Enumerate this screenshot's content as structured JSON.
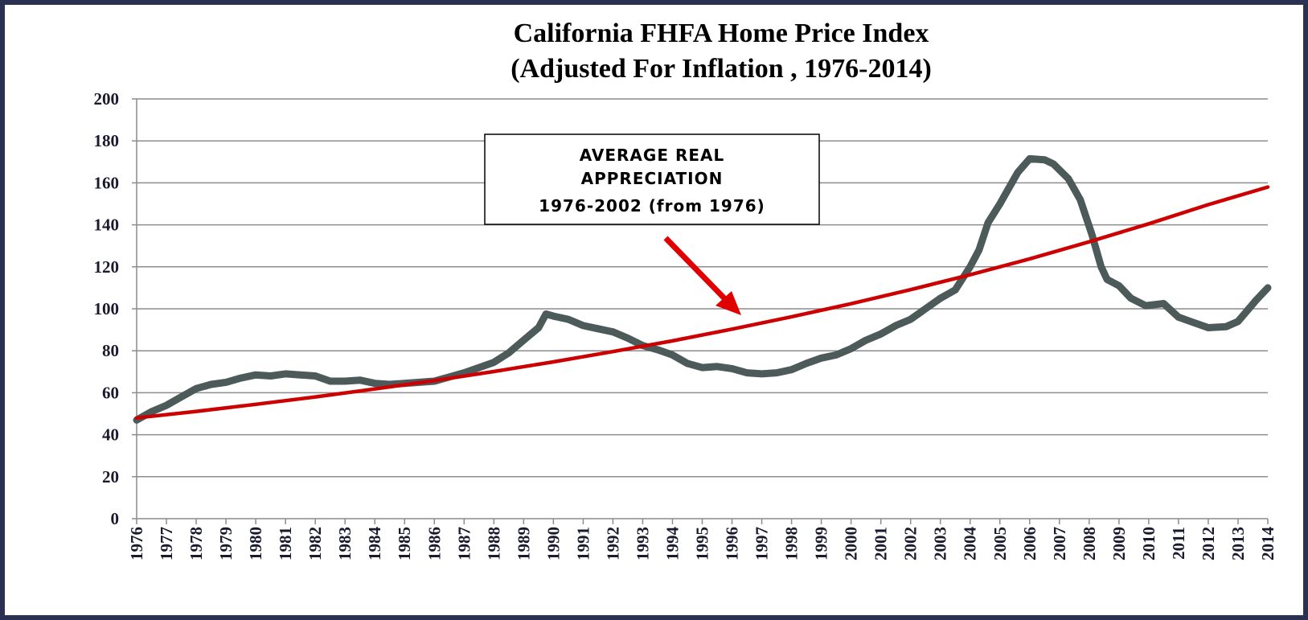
{
  "chart_data": {
    "type": "line",
    "title": [
      "California FHFA Home Price Index",
      "(Adjusted For Inflation , 1976-2014)"
    ],
    "annotation": [
      "AVERAGE REAL",
      "APPRECIATION",
      "1976-2002 (from 1976)"
    ],
    "xlim": [
      1976,
      2014
    ],
    "xticks": [
      1976,
      1977,
      1978,
      1979,
      1980,
      1981,
      1982,
      1983,
      1984,
      1985,
      1986,
      1987,
      1988,
      1989,
      1990,
      1991,
      1992,
      1993,
      1994,
      1995,
      1996,
      1997,
      1998,
      1999,
      2000,
      2001,
      2002,
      2003,
      2004,
      2005,
      2006,
      2007,
      2008,
      2009,
      2010,
      2011,
      2012,
      2013,
      2014
    ],
    "ylim": [
      0,
      200
    ],
    "yticks": [
      0,
      20,
      40,
      60,
      80,
      100,
      120,
      140,
      160,
      180,
      200
    ],
    "grid": true,
    "series": [
      {
        "color": "#4d5a5a",
        "x": [
          1976,
          1976.5,
          1977,
          1977.5,
          1978,
          1978.5,
          1979,
          1979.5,
          1980,
          1980.5,
          1981,
          1981.5,
          1982,
          1982.5,
          1983,
          1983.5,
          1984,
          1984.5,
          1985,
          1985.5,
          1986,
          1986.5,
          1987,
          1987.5,
          1988,
          1988.5,
          1989,
          1989.5,
          1989.75,
          1990,
          1990.5,
          1991,
          1991.5,
          1992,
          1992.5,
          1993,
          1993.5,
          1994,
          1994.5,
          1995,
          1995.5,
          1996,
          1996.5,
          1997,
          1997.5,
          1998,
          1998.5,
          1999,
          1999.5,
          2000,
          2000.5,
          2001,
          2001.5,
          2002,
          2002.5,
          2003,
          2003.5,
          2004,
          2004.3,
          2004.6,
          2005,
          2005.2,
          2005.6,
          2006,
          2006.5,
          2006.8,
          2007.3,
          2007.7,
          2008.1,
          2008.4,
          2008.6,
          2009,
          2009.4,
          2009.9,
          2010.5,
          2011,
          2011.4,
          2012,
          2012.6,
          2013,
          2013.6,
          2014
        ],
        "values": [
          47,
          51,
          54,
          58,
          62,
          64,
          65,
          67,
          68.5,
          68,
          69,
          68.5,
          68,
          65.5,
          65.5,
          66,
          64.5,
          64,
          64.5,
          65,
          65.5,
          67.5,
          69.5,
          72,
          74.5,
          79,
          85,
          91,
          97.5,
          96.5,
          95,
          92,
          90.5,
          89,
          86,
          82.5,
          80.5,
          78,
          74,
          72,
          72.5,
          71.5,
          69.5,
          69,
          69.5,
          71,
          74,
          76.5,
          78,
          81,
          85,
          88,
          92,
          95,
          100,
          105,
          109,
          120,
          128,
          141,
          150,
          155,
          165,
          171.5,
          171,
          169,
          162,
          152,
          135,
          120,
          114,
          111,
          105,
          101.5,
          102.5,
          96,
          94,
          91,
          91.5,
          94,
          104,
          110
        ]
      },
      {
        "color": "#cc0000",
        "x": [
          1976,
          1978,
          1980,
          1982,
          1984,
          1986,
          1988,
          1990,
          1992,
          1994,
          1996,
          1998,
          2000,
          2002,
          2004,
          2006,
          2008,
          2010,
          2012,
          2014
        ],
        "values": [
          48,
          51.1,
          54.5,
          58,
          61.8,
          65.8,
          70.1,
          74.7,
          79.6,
          84.7,
          90.3,
          96.2,
          102.4,
          109.1,
          116.2,
          123.8,
          131.9,
          140.5,
          149.6,
          158
        ]
      }
    ]
  }
}
